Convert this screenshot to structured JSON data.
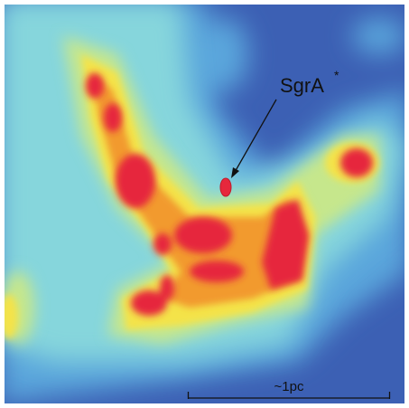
{
  "labels": {
    "source": "SgrA",
    "source_sup": "*",
    "scale": "~1pc"
  }
}
